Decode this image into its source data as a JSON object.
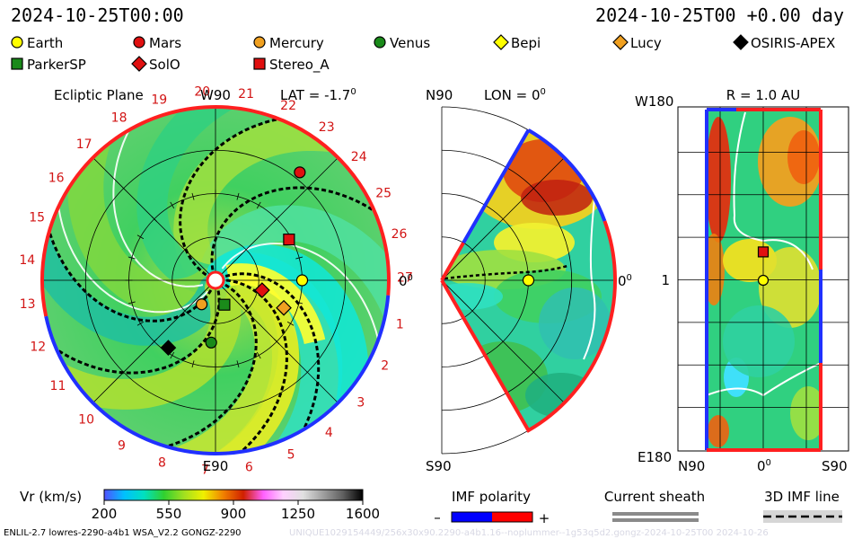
{
  "header": {
    "left_time": "2024-10-25T00:00",
    "right_time": "2024-10-25T00 +0.00 day"
  },
  "legend": [
    {
      "name": "Earth",
      "color": "#ffff00",
      "shape": "circle"
    },
    {
      "name": "Mars",
      "color": "#e01010",
      "shape": "circle"
    },
    {
      "name": "Mercury",
      "color": "#f0a020",
      "shape": "circle"
    },
    {
      "name": "Venus",
      "color": "#1a8a1a",
      "shape": "circle"
    },
    {
      "name": "Bepi",
      "color": "#ffff00",
      "shape": "diamond"
    },
    {
      "name": "Lucy",
      "color": "#f0a020",
      "shape": "diamond"
    },
    {
      "name": "OSIRIS-APEX",
      "color": "#000000",
      "shape": "diamond"
    },
    {
      "name": "ParkerSP",
      "color": "#1a8a1a",
      "shape": "square"
    },
    {
      "name": "SolO",
      "color": "#e01010",
      "shape": "diamond"
    },
    {
      "name": "Stereo_A",
      "color": "#e01010",
      "shape": "square"
    }
  ],
  "panels": {
    "ecliptic": {
      "title": "Ecliptic Plane",
      "top_label": "W90",
      "bottom_label": "E90",
      "lat_label": "LAT = -1.7",
      "lat_sup": "0",
      "right_label": "0",
      "right_sup": "0",
      "sector_numbers": [
        "1",
        "2",
        "3",
        "4",
        "5",
        "6",
        "7",
        "8",
        "9",
        "10",
        "11",
        "12",
        "13",
        "14",
        "15",
        "16",
        "17",
        "18",
        "19",
        "20",
        "21",
        "22",
        "23",
        "24",
        "25",
        "26",
        "27"
      ]
    },
    "meridional": {
      "top_left": "N90",
      "lon_label": "LON = 0",
      "lon_sup": "0",
      "right_label": "0",
      "right_sup": "0",
      "bottom_left": "S90"
    },
    "radial": {
      "top_left": "W180",
      "r_label": "R = 1.0 AU",
      "mid_left": "1",
      "bottom_left": "E180",
      "x_left": "N90",
      "x_mid": "0",
      "x_mid_sup": "0",
      "x_right": "S90"
    }
  },
  "colorbar": {
    "label": "Vr (km/s)",
    "ticks": [
      "200",
      "550",
      "900",
      "1250",
      "1600"
    ],
    "stops": [
      "#5050ff",
      "#00c0ff",
      "#00e0c0",
      "#30d030",
      "#a0e020",
      "#f0f000",
      "#f08000",
      "#d02000",
      "#ff60ff",
      "#ffd0ff",
      "#e0e0e0",
      "#a0a0a0",
      "#606060",
      "#000000"
    ]
  },
  "imf": {
    "polarity_label": "IMF polarity",
    "minus": "–",
    "plus": "+",
    "sheath_label": "Current sheath",
    "line_label": "3D IMF line",
    "blue": "#0000ff",
    "red": "#ff0000"
  },
  "footer": {
    "left": "ENLIL-2.7 lowres-2290-a4b1 WSA_V2.2 GONGZ-2290",
    "right": "UNIQUE1029154449/256x30x90.2290-a4b1.16--noplummer--1g53q5d2.gongz-2024-10-25T00   2024-10-26"
  },
  "chart_data": [
    {
      "type": "heatmap",
      "title": "Ecliptic Plane",
      "quantity": "Vr (km/s)",
      "color_range": [
        200,
        1600
      ],
      "grid_rings_au": [
        0.5,
        1.0,
        1.5,
        2.0
      ],
      "objects": [
        {
          "name": "Earth",
          "r_au": 1.0,
          "lon_deg": 0
        },
        {
          "name": "Mars",
          "r_au": 1.58,
          "lon_deg": 52
        },
        {
          "name": "Stereo_A",
          "r_au": 0.97,
          "lon_deg": 29
        },
        {
          "name": "SolO",
          "r_au": 0.55,
          "lon_deg": -12
        },
        {
          "name": "Lucy",
          "r_au": 0.85,
          "lon_deg": -22
        },
        {
          "name": "Mercury",
          "r_au": 0.32,
          "lon_deg": -120
        },
        {
          "name": "Venus",
          "r_au": 0.72,
          "lon_deg": -94
        },
        {
          "name": "ParkerSP",
          "r_au": 0.3,
          "lon_deg": -70
        },
        {
          "name": "OSIRIS-APEX",
          "r_au": 0.95,
          "lon_deg": -125
        }
      ]
    },
    {
      "type": "heatmap",
      "title": "LON = 0",
      "quantity": "Vr (km/s)",
      "lat_range_deg": [
        -60,
        60
      ],
      "objects": [
        {
          "name": "Earth",
          "r_au": 1.0,
          "lat_deg": 0
        }
      ]
    },
    {
      "type": "heatmap",
      "title": "R = 1.0 AU",
      "quantity": "Vr (km/s)",
      "xlim": [
        "N90",
        "S90"
      ],
      "ylim": [
        "E180",
        "W180"
      ],
      "objects": [
        {
          "name": "Earth",
          "lat_deg": 0,
          "lon_deg": 0
        },
        {
          "name": "Stereo_A",
          "lat_deg": 0,
          "lon_deg": 30
        }
      ]
    }
  ]
}
